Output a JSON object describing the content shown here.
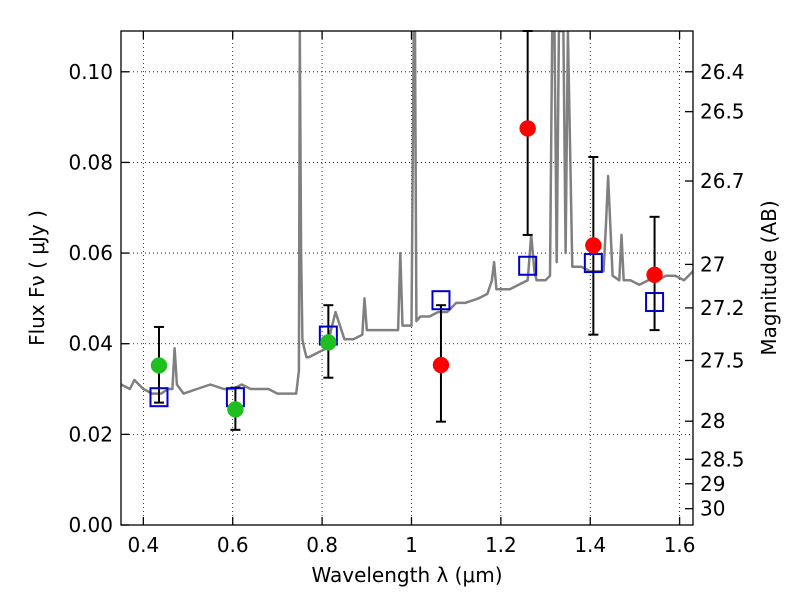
{
  "chart_data": {
    "type": "scatter",
    "xlabel": "Wavelength  λ (μm)",
    "ylabel": "Flux  Fν  ( μJy )",
    "y2label": "Magnitude (AB)",
    "xlim": [
      0.35,
      1.63
    ],
    "ylim": [
      0.0,
      0.109
    ],
    "grid": true,
    "x_ticks": [
      0.4,
      0.6,
      0.8,
      1.0,
      1.2,
      1.4,
      1.6
    ],
    "x_tick_labels": [
      "0.4",
      "0.6",
      "0.8",
      "1",
      "1.2",
      "1.4",
      "1.6"
    ],
    "y_ticks": [
      0.0,
      0.02,
      0.04,
      0.06,
      0.08,
      0.1
    ],
    "y_tick_labels": [
      "0.00",
      "0.02",
      "0.04",
      "0.06",
      "0.08",
      "0.10"
    ],
    "y2_ticks": [
      {
        "label": "26.4",
        "flux": 0.1
      },
      {
        "label": "26.5",
        "flux": 0.0912
      },
      {
        "label": "26.7",
        "flux": 0.0759
      },
      {
        "label": "27",
        "flux": 0.0575
      },
      {
        "label": "27.2",
        "flux": 0.0479
      },
      {
        "label": "27.5",
        "flux": 0.0363
      },
      {
        "label": "28",
        "flux": 0.0229
      },
      {
        "label": "28.5",
        "flux": 0.0145
      },
      {
        "label": "29",
        "flux": 0.0091
      },
      {
        "label": "30",
        "flux": 0.0036
      }
    ],
    "series": [
      {
        "marker": "circle",
        "color": "#1fbf1f",
        "points": [
          {
            "x": 0.435,
            "y": 0.0352,
            "err_low": 0.0082,
            "err_high": 0.0085
          },
          {
            "x": 0.606,
            "y": 0.0255,
            "err_low": 0.0045,
            "err_high": 0.0048
          },
          {
            "x": 0.814,
            "y": 0.0403,
            "err_low": 0.0078,
            "err_high": 0.0082
          }
        ]
      },
      {
        "marker": "circle",
        "color": "#ff0000",
        "points": [
          {
            "x": 1.066,
            "y": 0.0353,
            "err_low": 0.0125,
            "err_high": 0.0132
          },
          {
            "x": 1.26,
            "y": 0.0875,
            "err_low": 0.0235,
            "err_high": 0.0215
          },
          {
            "x": 1.407,
            "y": 0.0617,
            "err_low": 0.0197,
            "err_high": 0.0195
          },
          {
            "x": 1.544,
            "y": 0.0552,
            "err_low": 0.0122,
            "err_high": 0.0128
          }
        ]
      },
      {
        "marker": "square-open",
        "color": "#0000cc",
        "points": [
          {
            "x": 0.435,
            "y": 0.0282
          },
          {
            "x": 0.606,
            "y": 0.0282
          },
          {
            "x": 0.814,
            "y": 0.0418
          },
          {
            "x": 1.066,
            "y": 0.0496
          },
          {
            "x": 1.26,
            "y": 0.0572
          },
          {
            "x": 1.407,
            "y": 0.0578
          },
          {
            "x": 1.544,
            "y": 0.0492
          }
        ]
      }
    ],
    "model_spectrum": {
      "color": "#808080",
      "x": [
        0.35,
        0.37,
        0.38,
        0.4,
        0.42,
        0.44,
        0.455,
        0.465,
        0.47,
        0.475,
        0.49,
        0.52,
        0.55,
        0.58,
        0.6,
        0.62,
        0.64,
        0.66,
        0.68,
        0.7,
        0.72,
        0.735,
        0.742,
        0.748,
        0.75,
        0.753,
        0.756,
        0.76,
        0.765,
        0.77,
        0.79,
        0.81,
        0.83,
        0.85,
        0.87,
        0.89,
        0.895,
        0.9,
        0.905,
        0.92,
        0.95,
        0.97,
        0.975,
        0.98,
        0.99,
        1.0,
        1.005,
        1.008,
        1.011,
        1.02,
        1.04,
        1.06,
        1.08,
        1.1,
        1.12,
        1.15,
        1.17,
        1.18,
        1.185,
        1.19,
        1.2,
        1.22,
        1.24,
        1.26,
        1.268,
        1.275,
        1.28,
        1.29,
        1.3,
        1.31,
        1.315,
        1.32,
        1.325,
        1.33,
        1.335,
        1.34,
        1.345,
        1.35,
        1.36,
        1.38,
        1.4,
        1.42,
        1.43,
        1.435,
        1.44,
        1.45,
        1.465,
        1.47,
        1.475,
        1.49,
        1.51,
        1.53,
        1.55,
        1.57,
        1.59,
        1.61,
        1.63
      ],
      "y": [
        0.031,
        0.03,
        0.032,
        0.03,
        0.029,
        0.029,
        0.03,
        0.03,
        0.039,
        0.031,
        0.029,
        0.03,
        0.031,
        0.03,
        0.03,
        0.031,
        0.03,
        0.03,
        0.03,
        0.029,
        0.029,
        0.029,
        0.029,
        0.034,
        0.109,
        0.06,
        0.041,
        0.039,
        0.037,
        0.037,
        0.038,
        0.039,
        0.047,
        0.041,
        0.041,
        0.042,
        0.05,
        0.043,
        0.043,
        0.043,
        0.043,
        0.043,
        0.06,
        0.044,
        0.044,
        0.044,
        0.109,
        0.109,
        0.045,
        0.046,
        0.046,
        0.047,
        0.047,
        0.049,
        0.049,
        0.05,
        0.051,
        0.054,
        0.058,
        0.052,
        0.052,
        0.052,
        0.053,
        0.054,
        0.064,
        0.056,
        0.054,
        0.054,
        0.054,
        0.055,
        0.109,
        0.109,
        0.058,
        0.109,
        0.109,
        0.109,
        0.06,
        0.109,
        0.057,
        0.057,
        0.056,
        0.056,
        0.056,
        0.066,
        0.077,
        0.055,
        0.054,
        0.064,
        0.054,
        0.054,
        0.053,
        0.054,
        0.054,
        0.055,
        0.055,
        0.054,
        0.056
      ]
    }
  }
}
